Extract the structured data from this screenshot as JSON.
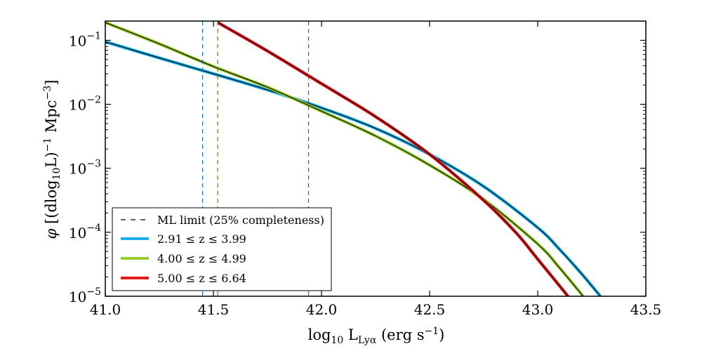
{
  "chart_data": {
    "type": "line",
    "xlabel": "log10 L_Lyα (erg s^-1)",
    "ylabel": "φ [(dlog10 L)^-1 Mpc^-3]",
    "y_scale": "log",
    "xlim": [
      41.0,
      43.5
    ],
    "ylim": [
      1e-05,
      0.2
    ],
    "x_ticks": [
      41.0,
      41.5,
      42.0,
      42.5,
      43.0,
      43.5
    ],
    "x_tick_labels": [
      "41.0",
      "41.5",
      "42.0",
      "42.5",
      "43.0",
      "43.5"
    ],
    "y_ticks": [
      1e-05,
      0.0001,
      0.001,
      0.01,
      0.1
    ],
    "y_tick_labels": [
      {
        "base": "10",
        "exp": "−5"
      },
      {
        "base": "10",
        "exp": "−4"
      },
      {
        "base": "10",
        "exp": "−3"
      },
      {
        "base": "10",
        "exp": "−2"
      },
      {
        "base": "10",
        "exp": "−1"
      }
    ],
    "legend_location": "lower-left",
    "legend": {
      "ml_limit_label": "ML limit (25% completeness)"
    },
    "series": [
      {
        "name": "2.91 ≤ z ≤ 3.99",
        "color": "#1aaee8",
        "outline_color": "#000000",
        "x": [
          41.0,
          41.25,
          41.5,
          41.75,
          42.0,
          42.25,
          42.5,
          42.75,
          43.0,
          43.1,
          43.2,
          43.29
        ],
        "values": [
          0.095,
          0.053,
          0.03,
          0.0168,
          0.0088,
          0.0042,
          0.00165,
          0.00052,
          0.000118,
          5.45e-05,
          2.3e-05,
          1e-05
        ],
        "ml_limit_x": 41.45,
        "ml_limit_color": "#1f6fb5"
      },
      {
        "name": "4.00 ≤ z ≤ 4.99",
        "color": "#9acd32",
        "outline_color": "#000000",
        "x": [
          41.0,
          41.25,
          41.5,
          41.75,
          42.0,
          42.25,
          42.5,
          42.75,
          43.0,
          43.1,
          43.21
        ],
        "values": [
          0.19,
          0.088,
          0.039,
          0.0185,
          0.0078,
          0.0032,
          0.00112,
          0.000325,
          6.55e-05,
          2.8e-05,
          1e-05
        ],
        "ml_limit_x": 41.52,
        "ml_limit_color": "#5f7a1f"
      },
      {
        "name": "5.00 ≤ z ≤ 6.64",
        "color": "#e31a1c",
        "outline_color": "#000000",
        "x": [
          41.52,
          41.75,
          42.0,
          42.25,
          42.5,
          42.75,
          42.9,
          43.0,
          43.14
        ],
        "values": [
          0.19,
          0.068,
          0.021,
          0.0064,
          0.00165,
          0.000315,
          9.8e-05,
          3.8e-05,
          1e-05
        ],
        "ml_limit_x": 41.94,
        "ml_limit_color": "#b03030"
      }
    ]
  }
}
